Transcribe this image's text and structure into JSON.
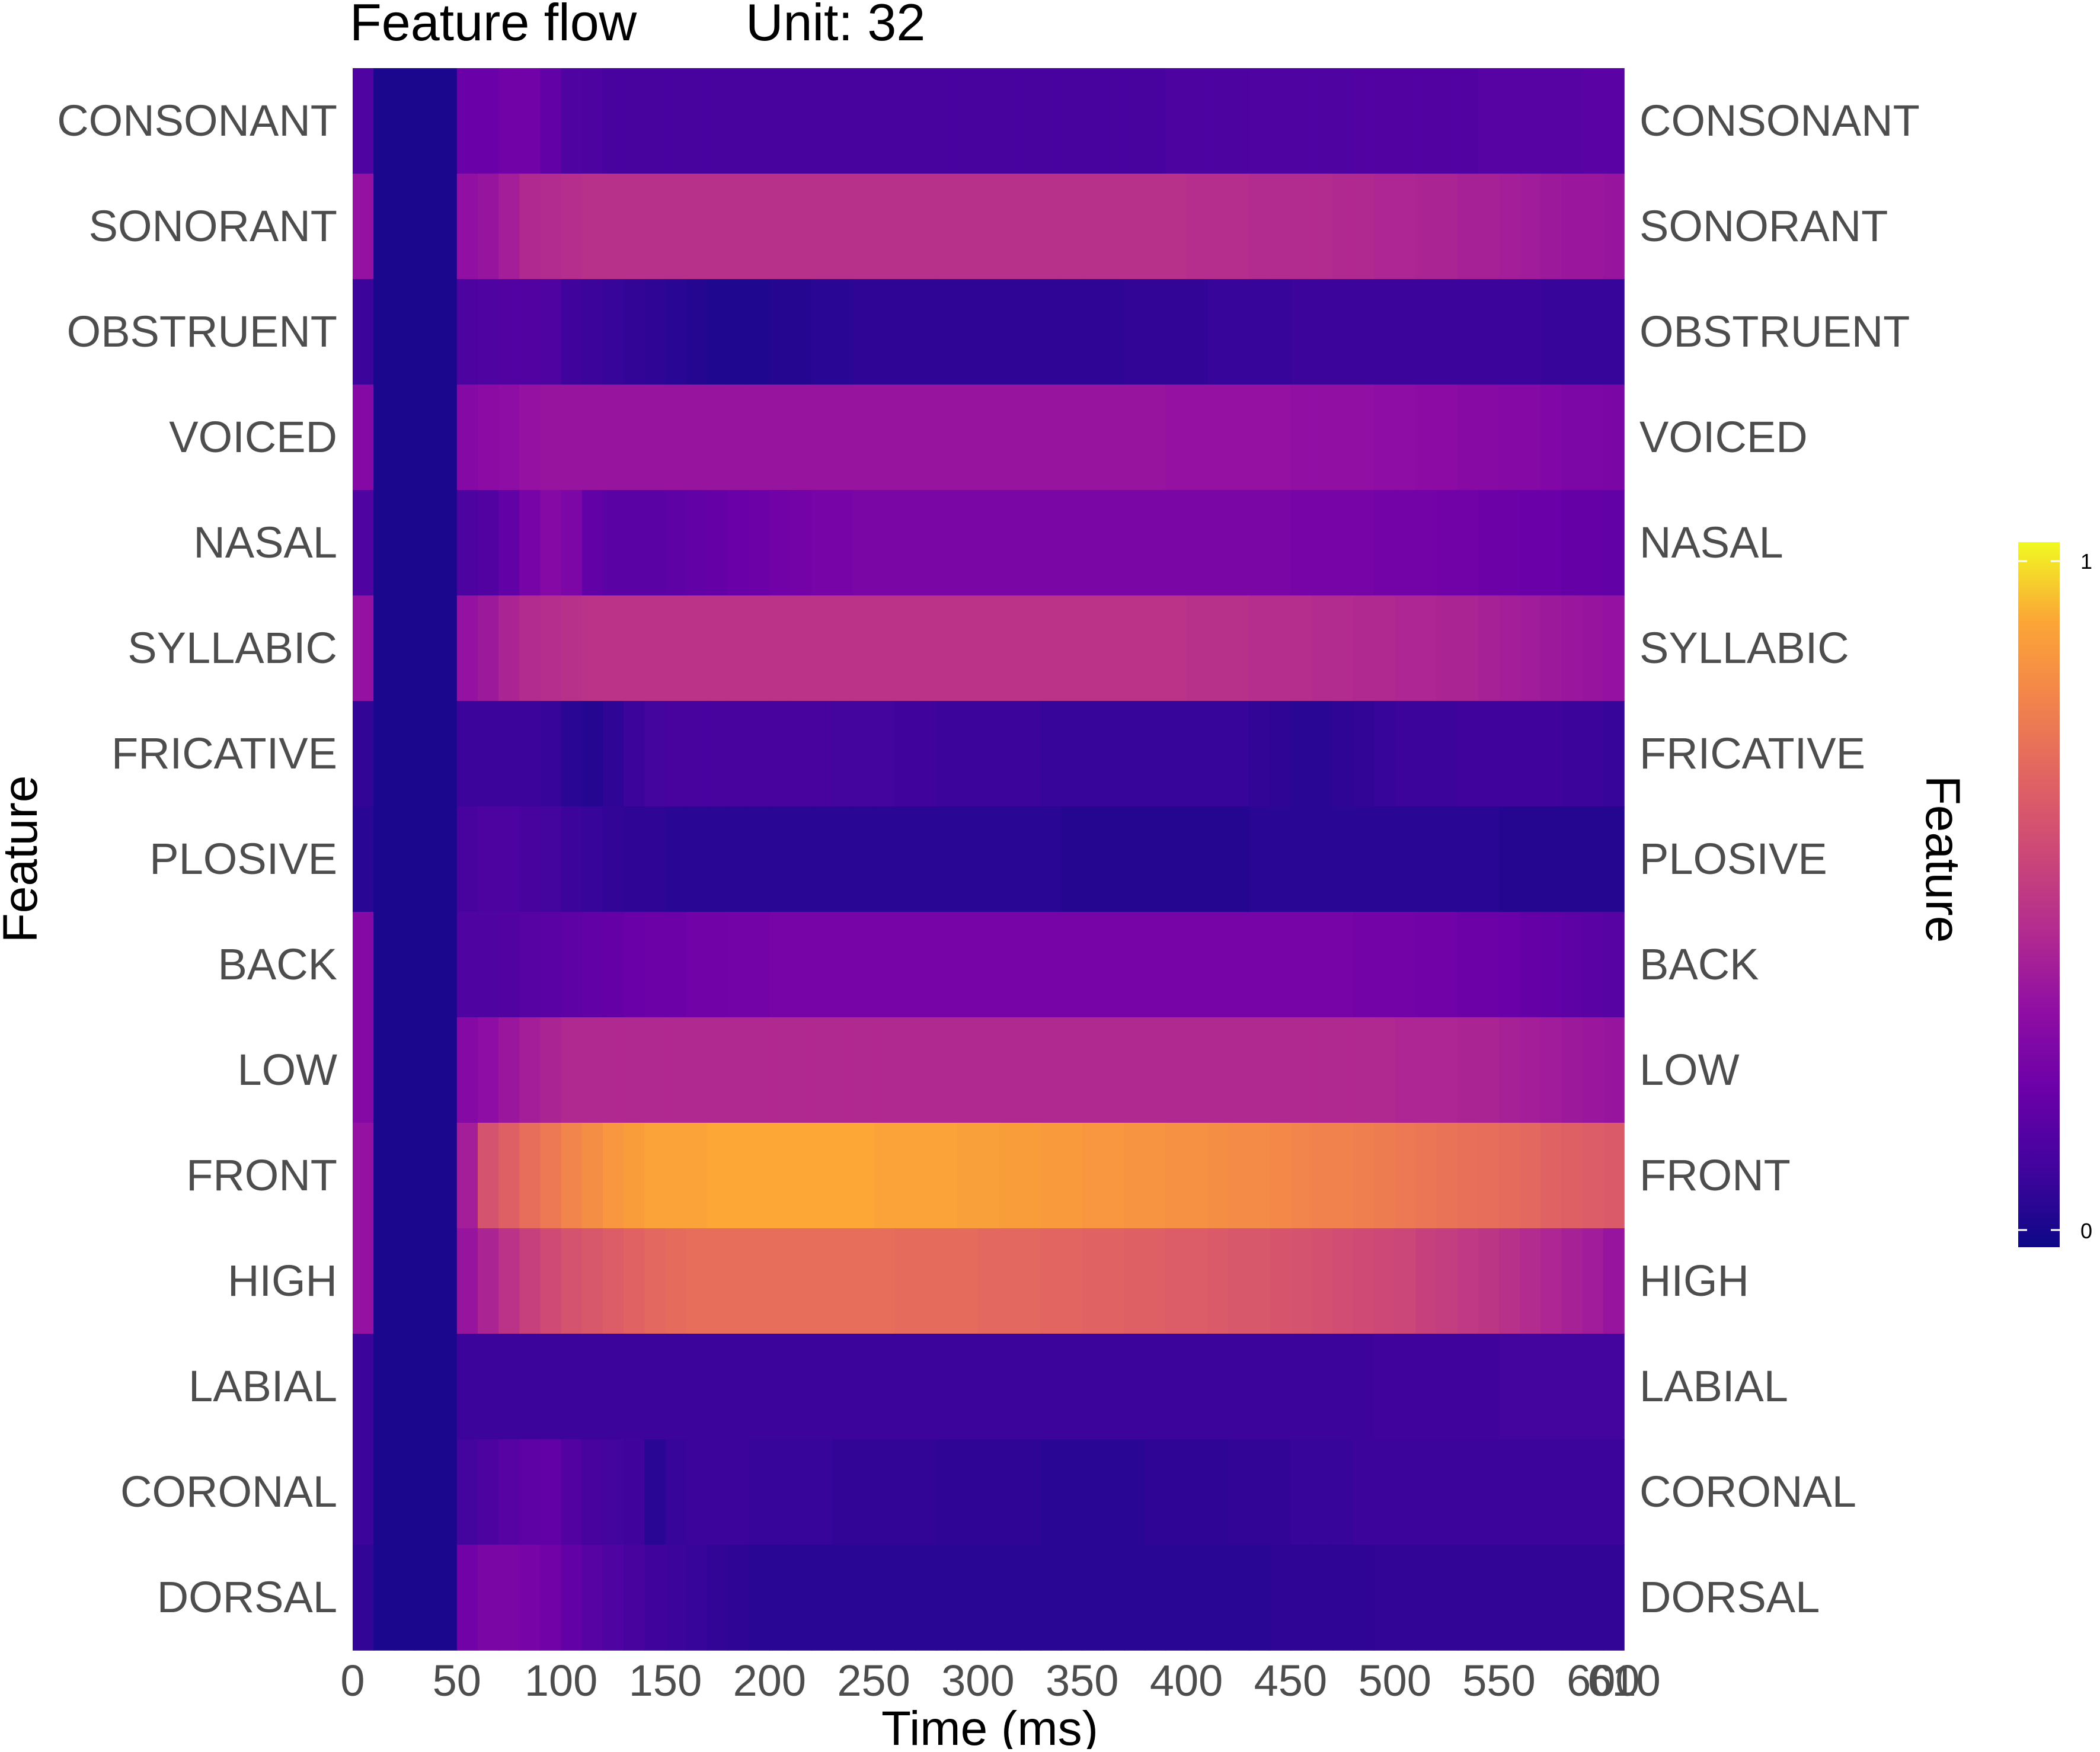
{
  "chart_data": {
    "type": "heatmap",
    "title": "Feature flow",
    "subtitle": "Unit: 32",
    "xlabel": "Time (ms)",
    "ylabel": "Feature",
    "ylabel_right": "Feature",
    "colorscale": "plasma",
    "color_range": [
      0,
      1
    ],
    "colorbar_ticks": [
      "1",
      "0"
    ],
    "xlim": [
      0,
      610
    ],
    "x_tick_labels": [
      "0",
      "50",
      "100",
      "150",
      "200",
      "250",
      "300",
      "350",
      "400",
      "450",
      "500",
      "550",
      "600",
      "610"
    ],
    "x": [
      0,
      10,
      20,
      30,
      40,
      50,
      60,
      70,
      80,
      90,
      100,
      110,
      120,
      130,
      140,
      150,
      160,
      170,
      180,
      190,
      200,
      210,
      220,
      230,
      240,
      250,
      260,
      270,
      280,
      290,
      300,
      310,
      320,
      330,
      340,
      350,
      360,
      370,
      380,
      390,
      400,
      410,
      420,
      430,
      440,
      450,
      460,
      470,
      480,
      490,
      500,
      510,
      520,
      530,
      540,
      550,
      560,
      570,
      580,
      590,
      600
    ],
    "features": [
      "CONSONANT",
      "SONORANT",
      "OBSTRUENT",
      "VOICED",
      "NASAL",
      "SYLLABIC",
      "FRICATIVE",
      "PLOSIVE",
      "BACK",
      "LOW",
      "FRONT",
      "HIGH",
      "LABIAL",
      "CORONAL",
      "DORSAL"
    ],
    "values": [
      [
        0.15,
        0.03,
        0.03,
        0.03,
        0.03,
        0.22,
        0.22,
        0.24,
        0.24,
        0.2,
        0.15,
        0.14,
        0.13,
        0.13,
        0.13,
        0.13,
        0.13,
        0.13,
        0.13,
        0.13,
        0.13,
        0.13,
        0.13,
        0.13,
        0.13,
        0.13,
        0.13,
        0.13,
        0.13,
        0.13,
        0.13,
        0.13,
        0.13,
        0.13,
        0.13,
        0.13,
        0.13,
        0.13,
        0.13,
        0.14,
        0.14,
        0.14,
        0.14,
        0.15,
        0.15,
        0.15,
        0.15,
        0.15,
        0.16,
        0.16,
        0.16,
        0.16,
        0.16,
        0.16,
        0.17,
        0.17,
        0.17,
        0.17,
        0.17,
        0.18,
        0.18
      ],
      [
        0.35,
        0.03,
        0.03,
        0.03,
        0.03,
        0.34,
        0.36,
        0.4,
        0.44,
        0.45,
        0.46,
        0.47,
        0.47,
        0.47,
        0.47,
        0.47,
        0.47,
        0.47,
        0.47,
        0.47,
        0.47,
        0.47,
        0.47,
        0.47,
        0.47,
        0.47,
        0.47,
        0.47,
        0.47,
        0.47,
        0.47,
        0.47,
        0.47,
        0.47,
        0.47,
        0.47,
        0.47,
        0.47,
        0.47,
        0.47,
        0.46,
        0.46,
        0.46,
        0.45,
        0.45,
        0.45,
        0.45,
        0.44,
        0.44,
        0.43,
        0.43,
        0.42,
        0.42,
        0.41,
        0.41,
        0.4,
        0.39,
        0.38,
        0.37,
        0.37,
        0.36
      ],
      [
        0.1,
        0.03,
        0.03,
        0.03,
        0.03,
        0.14,
        0.15,
        0.16,
        0.16,
        0.15,
        0.11,
        0.1,
        0.09,
        0.08,
        0.07,
        0.06,
        0.05,
        0.04,
        0.04,
        0.04,
        0.05,
        0.05,
        0.06,
        0.06,
        0.07,
        0.07,
        0.07,
        0.07,
        0.07,
        0.07,
        0.07,
        0.07,
        0.07,
        0.07,
        0.07,
        0.07,
        0.07,
        0.08,
        0.08,
        0.08,
        0.08,
        0.09,
        0.09,
        0.09,
        0.09,
        0.1,
        0.1,
        0.1,
        0.1,
        0.1,
        0.1,
        0.1,
        0.1,
        0.1,
        0.1,
        0.1,
        0.1,
        0.09,
        0.09,
        0.09,
        0.09
      ],
      [
        0.3,
        0.03,
        0.03,
        0.03,
        0.03,
        0.3,
        0.32,
        0.33,
        0.35,
        0.36,
        0.36,
        0.36,
        0.36,
        0.36,
        0.36,
        0.36,
        0.36,
        0.36,
        0.36,
        0.36,
        0.36,
        0.36,
        0.36,
        0.36,
        0.36,
        0.36,
        0.36,
        0.36,
        0.36,
        0.36,
        0.36,
        0.36,
        0.36,
        0.36,
        0.36,
        0.36,
        0.36,
        0.36,
        0.36,
        0.35,
        0.35,
        0.35,
        0.35,
        0.35,
        0.35,
        0.34,
        0.34,
        0.34,
        0.34,
        0.33,
        0.33,
        0.32,
        0.32,
        0.31,
        0.31,
        0.3,
        0.3,
        0.29,
        0.28,
        0.28,
        0.27
      ],
      [
        0.15,
        0.03,
        0.03,
        0.03,
        0.03,
        0.14,
        0.16,
        0.2,
        0.26,
        0.3,
        0.28,
        0.2,
        0.18,
        0.18,
        0.18,
        0.19,
        0.2,
        0.21,
        0.22,
        0.23,
        0.24,
        0.25,
        0.26,
        0.26,
        0.27,
        0.27,
        0.27,
        0.27,
        0.27,
        0.27,
        0.27,
        0.27,
        0.27,
        0.27,
        0.27,
        0.27,
        0.27,
        0.27,
        0.27,
        0.27,
        0.27,
        0.27,
        0.27,
        0.27,
        0.27,
        0.26,
        0.26,
        0.26,
        0.26,
        0.25,
        0.25,
        0.25,
        0.24,
        0.24,
        0.23,
        0.23,
        0.22,
        0.22,
        0.21,
        0.21,
        0.2
      ],
      [
        0.35,
        0.03,
        0.03,
        0.03,
        0.03,
        0.35,
        0.38,
        0.42,
        0.45,
        0.46,
        0.47,
        0.48,
        0.48,
        0.48,
        0.48,
        0.48,
        0.48,
        0.48,
        0.48,
        0.48,
        0.48,
        0.48,
        0.48,
        0.48,
        0.48,
        0.48,
        0.48,
        0.48,
        0.48,
        0.48,
        0.48,
        0.48,
        0.48,
        0.48,
        0.48,
        0.48,
        0.48,
        0.48,
        0.48,
        0.48,
        0.47,
        0.47,
        0.47,
        0.46,
        0.46,
        0.46,
        0.45,
        0.45,
        0.44,
        0.44,
        0.43,
        0.43,
        0.42,
        0.42,
        0.41,
        0.4,
        0.39,
        0.38,
        0.37,
        0.36,
        0.35
      ],
      [
        0.08,
        0.03,
        0.03,
        0.03,
        0.03,
        0.1,
        0.1,
        0.1,
        0.1,
        0.09,
        0.06,
        0.05,
        0.07,
        0.1,
        0.12,
        0.13,
        0.13,
        0.13,
        0.13,
        0.13,
        0.13,
        0.13,
        0.13,
        0.12,
        0.12,
        0.12,
        0.11,
        0.11,
        0.1,
        0.1,
        0.1,
        0.1,
        0.1,
        0.09,
        0.09,
        0.09,
        0.09,
        0.09,
        0.09,
        0.09,
        0.09,
        0.09,
        0.09,
        0.08,
        0.07,
        0.06,
        0.06,
        0.07,
        0.08,
        0.09,
        0.1,
        0.1,
        0.1,
        0.11,
        0.11,
        0.11,
        0.11,
        0.11,
        0.1,
        0.1,
        0.09
      ],
      [
        0.06,
        0.03,
        0.03,
        0.03,
        0.03,
        0.13,
        0.14,
        0.14,
        0.13,
        0.12,
        0.1,
        0.09,
        0.08,
        0.07,
        0.07,
        0.06,
        0.06,
        0.06,
        0.06,
        0.06,
        0.06,
        0.06,
        0.06,
        0.06,
        0.06,
        0.06,
        0.06,
        0.06,
        0.06,
        0.06,
        0.06,
        0.06,
        0.06,
        0.06,
        0.05,
        0.05,
        0.05,
        0.05,
        0.05,
        0.05,
        0.05,
        0.05,
        0.05,
        0.06,
        0.06,
        0.06,
        0.06,
        0.06,
        0.06,
        0.06,
        0.06,
        0.06,
        0.06,
        0.06,
        0.06,
        0.05,
        0.05,
        0.05,
        0.05,
        0.05,
        0.05
      ],
      [
        0.3,
        0.03,
        0.03,
        0.03,
        0.03,
        0.15,
        0.15,
        0.16,
        0.17,
        0.18,
        0.19,
        0.2,
        0.21,
        0.22,
        0.23,
        0.23,
        0.24,
        0.24,
        0.25,
        0.25,
        0.26,
        0.26,
        0.26,
        0.26,
        0.26,
        0.26,
        0.26,
        0.26,
        0.26,
        0.26,
        0.26,
        0.26,
        0.26,
        0.26,
        0.26,
        0.26,
        0.26,
        0.26,
        0.26,
        0.26,
        0.26,
        0.26,
        0.26,
        0.26,
        0.26,
        0.26,
        0.26,
        0.26,
        0.25,
        0.25,
        0.25,
        0.24,
        0.24,
        0.23,
        0.23,
        0.22,
        0.21,
        0.2,
        0.19,
        0.18,
        0.17
      ],
      [
        0.3,
        0.03,
        0.03,
        0.03,
        0.03,
        0.3,
        0.33,
        0.37,
        0.4,
        0.42,
        0.44,
        0.44,
        0.44,
        0.44,
        0.44,
        0.44,
        0.44,
        0.44,
        0.44,
        0.44,
        0.44,
        0.44,
        0.44,
        0.44,
        0.44,
        0.44,
        0.44,
        0.44,
        0.44,
        0.44,
        0.44,
        0.44,
        0.44,
        0.44,
        0.44,
        0.44,
        0.44,
        0.44,
        0.44,
        0.44,
        0.44,
        0.44,
        0.44,
        0.44,
        0.44,
        0.44,
        0.44,
        0.44,
        0.44,
        0.44,
        0.43,
        0.43,
        0.43,
        0.42,
        0.42,
        0.41,
        0.4,
        0.39,
        0.38,
        0.37,
        0.36
      ],
      [
        0.35,
        0.03,
        0.03,
        0.03,
        0.03,
        0.4,
        0.6,
        0.65,
        0.7,
        0.74,
        0.78,
        0.81,
        0.84,
        0.86,
        0.88,
        0.88,
        0.88,
        0.89,
        0.89,
        0.89,
        0.89,
        0.89,
        0.89,
        0.89,
        0.89,
        0.88,
        0.88,
        0.88,
        0.88,
        0.87,
        0.87,
        0.86,
        0.86,
        0.85,
        0.85,
        0.84,
        0.84,
        0.83,
        0.83,
        0.82,
        0.82,
        0.81,
        0.8,
        0.8,
        0.79,
        0.78,
        0.77,
        0.77,
        0.76,
        0.75,
        0.74,
        0.73,
        0.72,
        0.71,
        0.7,
        0.69,
        0.68,
        0.66,
        0.65,
        0.64,
        0.63
      ],
      [
        0.35,
        0.03,
        0.03,
        0.03,
        0.03,
        0.36,
        0.42,
        0.48,
        0.53,
        0.57,
        0.6,
        0.62,
        0.64,
        0.66,
        0.68,
        0.69,
        0.7,
        0.7,
        0.7,
        0.7,
        0.7,
        0.7,
        0.7,
        0.7,
        0.7,
        0.7,
        0.69,
        0.69,
        0.69,
        0.69,
        0.68,
        0.68,
        0.68,
        0.67,
        0.67,
        0.66,
        0.66,
        0.65,
        0.65,
        0.64,
        0.64,
        0.63,
        0.62,
        0.62,
        0.61,
        0.6,
        0.59,
        0.58,
        0.57,
        0.56,
        0.55,
        0.53,
        0.52,
        0.5,
        0.49,
        0.47,
        0.45,
        0.43,
        0.41,
        0.39,
        0.36
      ],
      [
        0.1,
        0.03,
        0.03,
        0.03,
        0.03,
        0.1,
        0.1,
        0.1,
        0.1,
        0.1,
        0.1,
        0.1,
        0.1,
        0.1,
        0.1,
        0.1,
        0.1,
        0.1,
        0.1,
        0.1,
        0.1,
        0.1,
        0.1,
        0.1,
        0.1,
        0.1,
        0.1,
        0.1,
        0.1,
        0.1,
        0.1,
        0.1,
        0.1,
        0.1,
        0.1,
        0.1,
        0.1,
        0.1,
        0.1,
        0.1,
        0.1,
        0.1,
        0.1,
        0.1,
        0.1,
        0.1,
        0.1,
        0.1,
        0.1,
        0.11,
        0.11,
        0.11,
        0.11,
        0.11,
        0.11,
        0.12,
        0.12,
        0.12,
        0.12,
        0.12,
        0.12
      ],
      [
        0.1,
        0.03,
        0.03,
        0.03,
        0.03,
        0.12,
        0.14,
        0.17,
        0.19,
        0.2,
        0.16,
        0.13,
        0.12,
        0.11,
        0.06,
        0.09,
        0.1,
        0.1,
        0.1,
        0.09,
        0.09,
        0.09,
        0.09,
        0.08,
        0.08,
        0.08,
        0.08,
        0.08,
        0.07,
        0.07,
        0.07,
        0.07,
        0.07,
        0.06,
        0.06,
        0.06,
        0.06,
        0.06,
        0.07,
        0.07,
        0.07,
        0.07,
        0.08,
        0.08,
        0.08,
        0.09,
        0.09,
        0.09,
        0.1,
        0.1,
        0.1,
        0.1,
        0.1,
        0.1,
        0.1,
        0.1,
        0.1,
        0.1,
        0.1,
        0.1,
        0.1
      ],
      [
        0.08,
        0.03,
        0.03,
        0.03,
        0.03,
        0.24,
        0.27,
        0.27,
        0.26,
        0.24,
        0.2,
        0.17,
        0.15,
        0.13,
        0.11,
        0.1,
        0.09,
        0.08,
        0.07,
        0.06,
        0.06,
        0.06,
        0.06,
        0.06,
        0.06,
        0.06,
        0.06,
        0.06,
        0.06,
        0.06,
        0.06,
        0.06,
        0.06,
        0.06,
        0.06,
        0.06,
        0.06,
        0.06,
        0.06,
        0.06,
        0.06,
        0.06,
        0.06,
        0.06,
        0.07,
        0.07,
        0.07,
        0.07,
        0.07,
        0.08,
        0.08,
        0.08,
        0.08,
        0.08,
        0.08,
        0.08,
        0.08,
        0.08,
        0.08,
        0.08,
        0.08
      ]
    ]
  }
}
